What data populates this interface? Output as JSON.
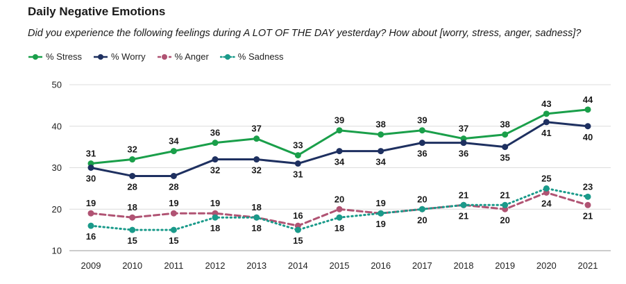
{
  "header": {
    "title": "Daily Negative Emotions",
    "subtitle": "Did you experience the following feelings during A LOT OF THE DAY yesterday? How about [worry, stress, anger, sadness]?"
  },
  "chart_data": {
    "type": "line",
    "title": "Daily Negative Emotions",
    "subtitle": "Did you experience the following feelings during A LOT OF THE DAY yesterday? How about [worry, stress, anger, sadness]?",
    "xlabel": "",
    "ylabel": "",
    "x": [
      "2009",
      "2010",
      "2011",
      "2012",
      "2013",
      "2014",
      "2015",
      "2016",
      "2017",
      "2018",
      "2019",
      "2020",
      "2021"
    ],
    "ylim": [
      10,
      50
    ],
    "yticks": [
      10,
      20,
      30,
      40,
      50
    ],
    "grid": true,
    "legend_position": "top-left",
    "series": [
      {
        "name": "% Stress",
        "color": "#1a9f4a",
        "style": "solid",
        "label_position": "above",
        "values": [
          31,
          32,
          34,
          36,
          37,
          33,
          39,
          38,
          39,
          37,
          38,
          43,
          44
        ]
      },
      {
        "name": "% Worry",
        "color": "#1e3060",
        "style": "solid",
        "label_position": "below",
        "values": [
          30,
          28,
          28,
          32,
          32,
          31,
          34,
          34,
          36,
          36,
          35,
          41,
          40
        ]
      },
      {
        "name": "% Anger",
        "color": "#b05373",
        "style": "dashed",
        "label_position": "above",
        "values": [
          19,
          18,
          19,
          19,
          18,
          16,
          20,
          19,
          20,
          21,
          20,
          24,
          21
        ]
      },
      {
        "name": "% Sadness",
        "color": "#1a9a8a",
        "style": "dotted",
        "label_position": "below",
        "values": [
          16,
          15,
          15,
          18,
          18,
          15,
          18,
          19,
          20,
          21,
          21,
          25,
          23
        ]
      }
    ],
    "data_labels": {
      "% Stress": {
        "position": [
          "above",
          "above",
          "above",
          "above",
          "above",
          "above",
          "above",
          "above",
          "above",
          "above",
          "above",
          "above",
          "above"
        ]
      },
      "% Worry": {
        "position": [
          "below",
          "below",
          "below",
          "below",
          "below",
          "below",
          "below",
          "below",
          "below",
          "below",
          "below",
          "below",
          "below"
        ]
      },
      "% Anger": {
        "position": [
          "above",
          "above",
          "above",
          "above",
          "above",
          "above",
          "above",
          "above",
          "above",
          "below",
          "below",
          "below",
          "below"
        ]
      },
      "% Sadness": {
        "position": [
          "below",
          "below",
          "below",
          "below",
          "below",
          "below",
          "below",
          "below",
          "below",
          "above",
          "above",
          "above",
          "above"
        ]
      }
    }
  }
}
